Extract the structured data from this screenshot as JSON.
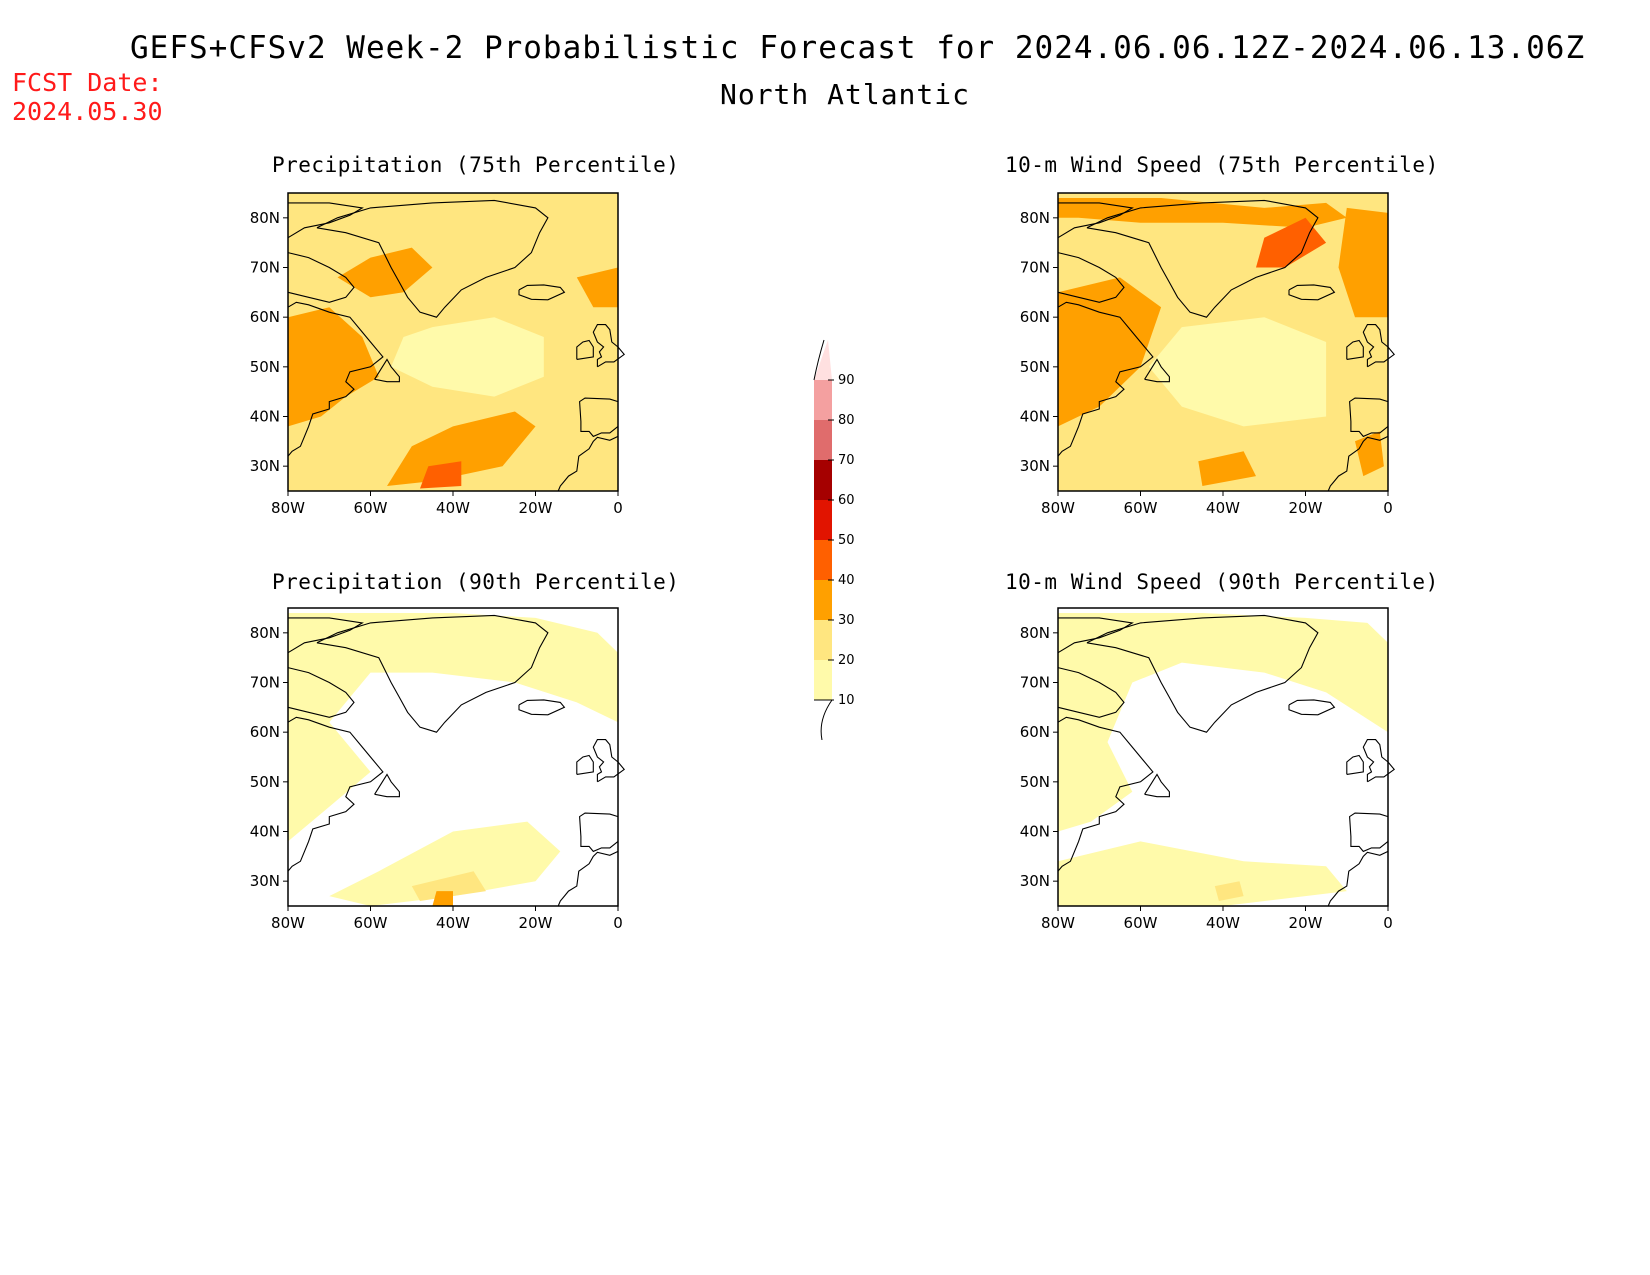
{
  "header": {
    "title": "GEFS+CFSv2 Week-2 Probabilistic Forecast for 2024.06.06.12Z-2024.06.13.06Z",
    "subtitle": "North Atlantic",
    "fcst_label": "FCST Date:",
    "fcst_date": "2024.05.30"
  },
  "panels": [
    {
      "title": "Precipitation (75th Percentile)",
      "level": "high"
    },
    {
      "title": "10-m Wind Speed (75th Percentile)",
      "level": "high-wind"
    },
    {
      "title": "Precipitation (90th Percentile)",
      "level": "low"
    },
    {
      "title": "10-m Wind Speed (90th Percentile)",
      "level": "low-wind"
    }
  ],
  "axes": {
    "lat_labels": [
      "80N",
      "70N",
      "60N",
      "50N",
      "40N",
      "30N"
    ],
    "lon_labels": [
      "80W",
      "60W",
      "40W",
      "20W",
      "0"
    ]
  },
  "colorbar": {
    "levels": [
      "10",
      "20",
      "30",
      "40",
      "50",
      "60",
      "70",
      "80",
      "90"
    ],
    "colors": [
      "#fffaaa",
      "#ffe680",
      "#ffa000",
      "#ff6000",
      "#e11400",
      "#a50000",
      "#e06c6c",
      "#f4a0a0",
      "#ffe0e0"
    ]
  }
}
